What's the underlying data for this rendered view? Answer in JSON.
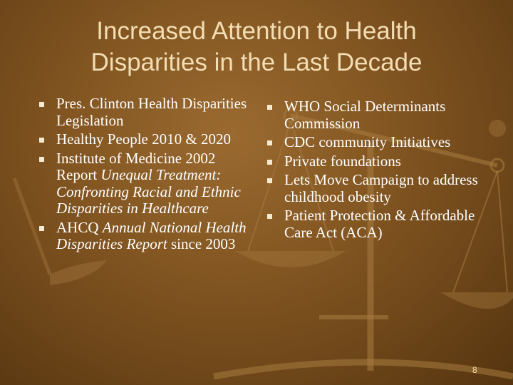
{
  "title_line1": "Increased Attention to Health",
  "title_line2": "Disparities in the Last Decade",
  "left_items": [
    {
      "pre": "Pres. Clinton Health Disparities Legislation",
      "em": "",
      "post": ""
    },
    {
      "pre": "Healthy People 2010 & 2020",
      "em": "",
      "post": ""
    },
    {
      "pre": "Institute of Medicine 2002 Report ",
      "em": "Unequal Treatment: Confronting Racial and Ethnic Disparities in Healthcare",
      "post": ""
    },
    {
      "pre": "AHCQ ",
      "em": "Annual National Health Disparities Report",
      "post": " since 2003"
    }
  ],
  "right_items": [
    {
      "text": "WHO Social Determinants Commission"
    },
    {
      "text": "CDC community Initiatives"
    },
    {
      "text": "Private foundations"
    },
    {
      "text": "Lets Move Campaign to address childhood obesity"
    },
    {
      "text": "Patient Protection & Affordable Care Act (ACA)"
    }
  ],
  "page_number": "8",
  "colors": {
    "background": "#845722",
    "title": "#f2ddb4",
    "text": "#ffffff",
    "bullet": "#f4ead2"
  },
  "icon_name": "scales-of-justice-icon",
  "bullet_icon": "square-bullet-icon"
}
